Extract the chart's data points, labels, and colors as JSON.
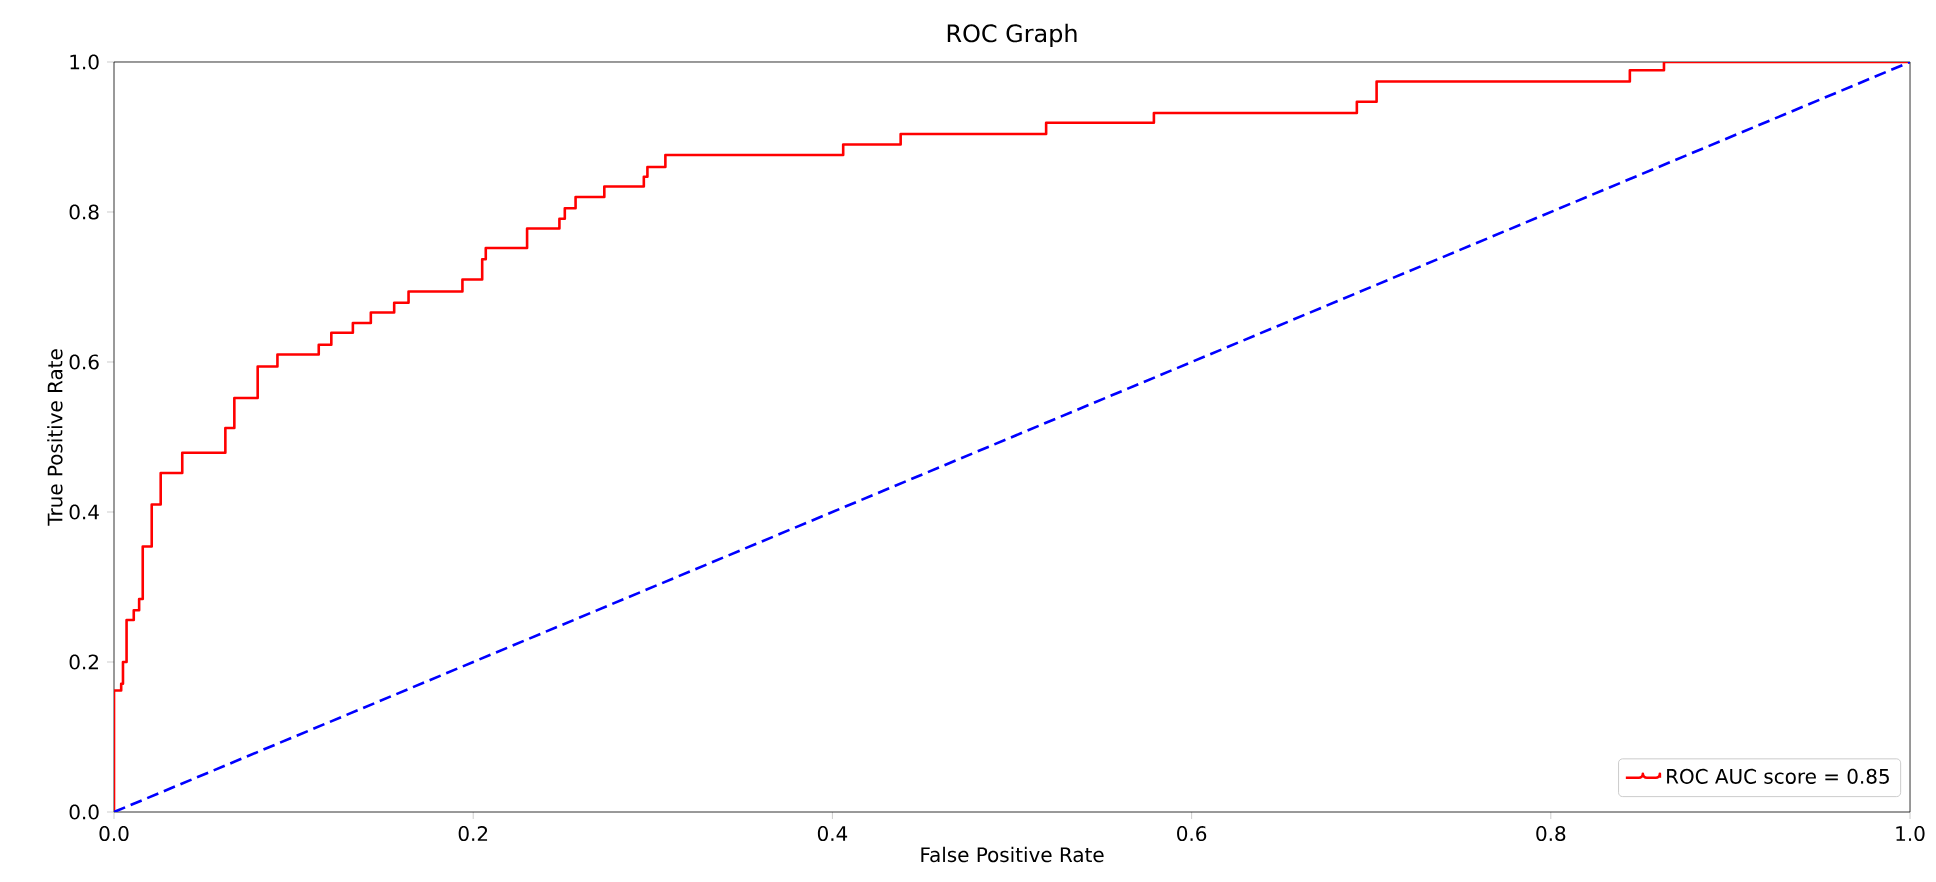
{
  "chart_data": {
    "type": "step",
    "title": "ROC Graph",
    "xlabel": "False Positive Rate",
    "ylabel": "True Positive Rate",
    "xlim": [
      0,
      1
    ],
    "ylim": [
      0,
      1
    ],
    "xticks": [
      {
        "value": 0,
        "label": "0.0"
      },
      {
        "value": 0.2,
        "label": "0.2"
      },
      {
        "value": 0.4,
        "label": "0.4"
      },
      {
        "value": 0.6,
        "label": "0.6"
      },
      {
        "value": 0.8,
        "label": "0.8"
      },
      {
        "value": 1,
        "label": "1.0"
      }
    ],
    "yticks": [
      {
        "value": 0,
        "label": "0.0"
      },
      {
        "value": 0.2,
        "label": "0.2"
      },
      {
        "value": 0.4,
        "label": "0.4"
      },
      {
        "value": 0.6,
        "label": "0.6"
      },
      {
        "value": 0.8,
        "label": "0.8"
      },
      {
        "value": 1,
        "label": "1.0"
      }
    ],
    "legend": "bottom right",
    "grid": false,
    "series": [
      {
        "name": "ROC AUC score = 0.85",
        "color": "#ff0000",
        "line_style": "solid",
        "x": [
          0,
          0,
          0.004,
          0.005,
          0.007,
          0.011,
          0.014,
          0.016,
          0.021,
          0.026,
          0.038,
          0.062,
          0.067,
          0.08,
          0.091,
          0.114,
          0.121,
          0.133,
          0.143,
          0.156,
          0.164,
          0.194,
          0.205,
          0.207,
          0.23,
          0.248,
          0.251,
          0.257,
          0.273,
          0.295,
          0.297,
          0.307,
          0.406,
          0.438,
          0.519,
          0.579,
          0.692,
          0.703,
          0.844,
          0.863,
          1
        ],
        "values": [
          0,
          0.162,
          0.171,
          0.2,
          0.256,
          0.269,
          0.284,
          0.354,
          0.41,
          0.452,
          0.479,
          0.512,
          0.552,
          0.594,
          0.61,
          0.623,
          0.639,
          0.652,
          0.666,
          0.679,
          0.694,
          0.71,
          0.737,
          0.752,
          0.778,
          0.791,
          0.805,
          0.82,
          0.834,
          0.847,
          0.86,
          0.876,
          0.89,
          0.904,
          0.919,
          0.932,
          0.947,
          0.974,
          0.989,
          1,
          1
        ]
      },
      {
        "type": "line",
        "color": "#0000ff",
        "line_style": "dashed",
        "x": [
          0,
          1
        ],
        "values": [
          0,
          1
        ]
      }
    ]
  }
}
